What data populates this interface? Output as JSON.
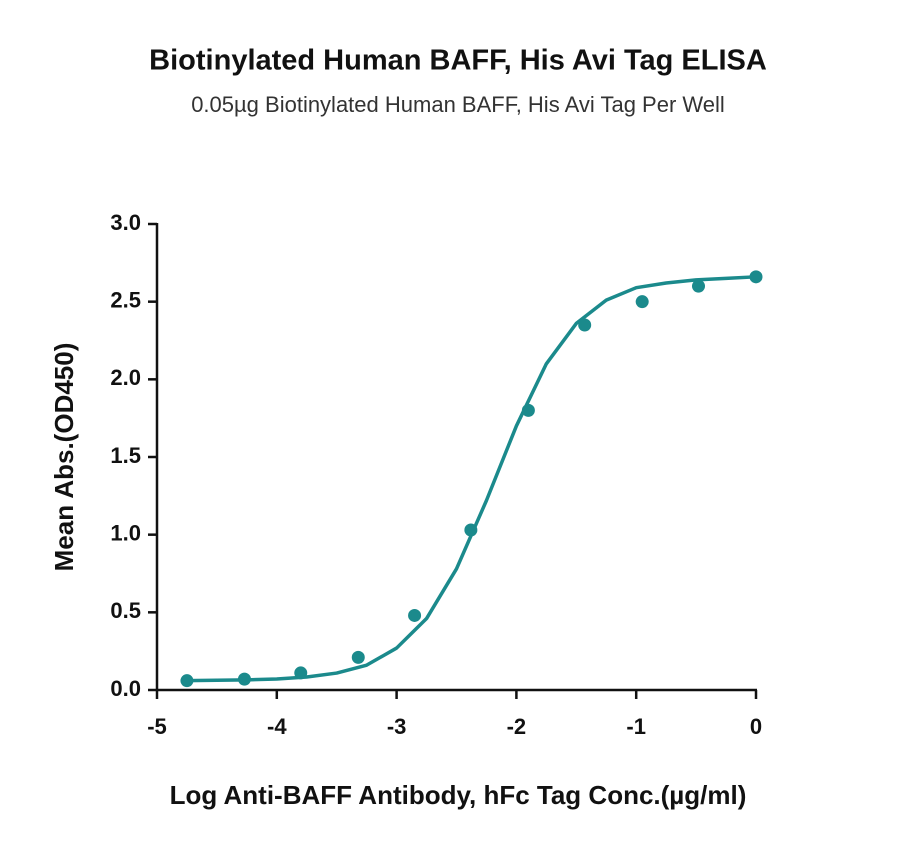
{
  "chart_data": {
    "type": "scatter",
    "title": "Biotinylated Human BAFF, His Avi Tag ELISA",
    "subtitle": "0.05µg Biotinylated Human BAFF, His Avi Tag Per Well",
    "x_label": "Log Anti-BAFF Antibody, hFc Tag Conc.(µg/ml)",
    "y_label": "Mean Abs.(OD450)",
    "xlim": [
      -5,
      0
    ],
    "xticks": [
      -5,
      -4,
      -3,
      -2,
      -1,
      0
    ],
    "ylim": [
      0,
      3
    ],
    "yticks": [
      {
        "value": 0,
        "label": "0.0"
      },
      0.5,
      {
        "value": 1,
        "label": "1.0"
      },
      1.5,
      {
        "value": 2,
        "label": "2.0"
      },
      2.5,
      {
        "value": 3,
        "label": "3.0"
      }
    ],
    "grid": false,
    "series": [
      {
        "style": "points",
        "color": "#1b8a8c",
        "x": [
          -4.75,
          -4.27,
          -3.8,
          -3.32,
          -2.85,
          -2.38,
          -1.9,
          -1.43,
          -0.95,
          -0.48,
          0
        ],
        "values": [
          0.06,
          0.07,
          0.11,
          0.21,
          0.48,
          1.03,
          1.8,
          2.35,
          2.5,
          2.6,
          2.66
        ]
      },
      {
        "style": "line",
        "color": "#1b8a8c",
        "x": [
          -4.75,
          -4.5,
          -4.25,
          -4,
          -3.75,
          -3.5,
          -3.25,
          -3,
          -2.75,
          -2.5,
          -2.25,
          -2,
          -1.75,
          -1.5,
          -1.25,
          -1,
          -0.75,
          -0.5,
          -0.25,
          0
        ],
        "values": [
          0.06,
          0.063,
          0.065,
          0.071,
          0.084,
          0.109,
          0.16,
          0.27,
          0.46,
          0.78,
          1.22,
          1.7,
          2.1,
          2.36,
          2.51,
          2.59,
          2.62,
          2.64,
          2.65,
          2.66
        ]
      }
    ]
  }
}
